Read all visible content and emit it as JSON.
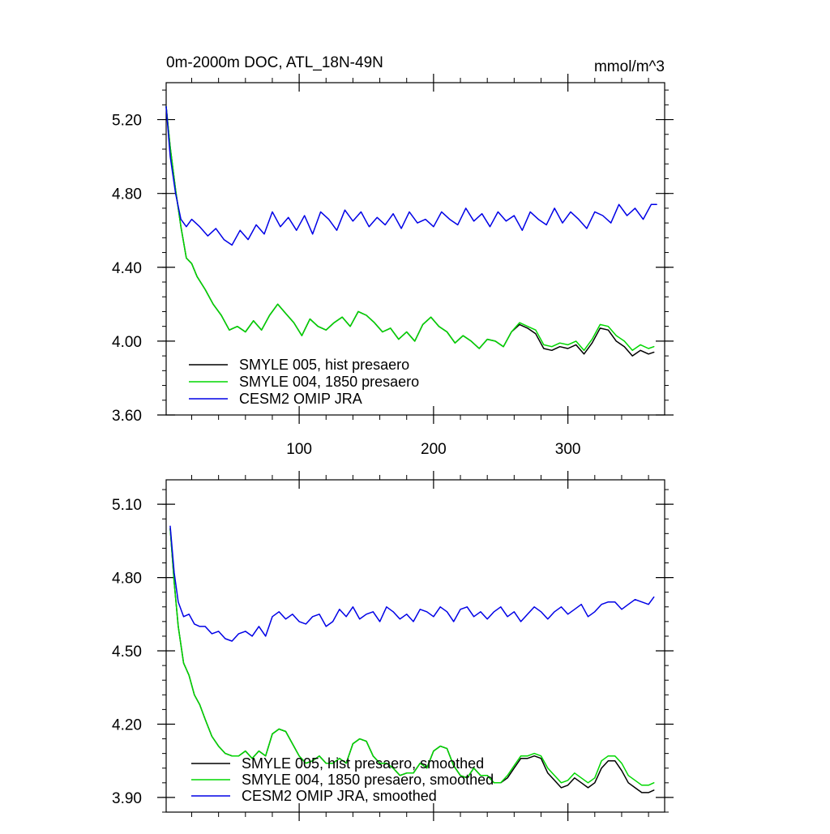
{
  "chart_data": [
    {
      "type": "line",
      "title": "0m-2000m DOC, ATL_18N-49N",
      "units": "mmol/m^3",
      "xlim": [
        1,
        372
      ],
      "ylim": [
        3.6,
        5.4
      ],
      "xticks": [
        100,
        200,
        300
      ],
      "xtick_labels": [
        "100",
        "200",
        "300"
      ],
      "yticks": [
        3.6,
        4.0,
        4.4,
        4.8,
        5.2
      ],
      "ytick_labels": [
        "3.60",
        "4.00",
        "4.40",
        "4.80",
        "5.20"
      ],
      "legend_position": "bottom-left",
      "series": [
        {
          "name": "SMYLE 005, hist presaero",
          "color": "#000000",
          "x": [
            1,
            4,
            8,
            12,
            16,
            20,
            24,
            30,
            36,
            42,
            48,
            54,
            60,
            66,
            72,
            78,
            84,
            90,
            96,
            102,
            108,
            114,
            120,
            126,
            132,
            138,
            144,
            150,
            156,
            162,
            168,
            174,
            180,
            186,
            192,
            198,
            204,
            210,
            216,
            222,
            228,
            234,
            240,
            246,
            252,
            258,
            264,
            270,
            276,
            282,
            288,
            294,
            300,
            306,
            312,
            318,
            324,
            330,
            336,
            342,
            348,
            354,
            360,
            364
          ],
          "values": [
            5.27,
            5.05,
            4.82,
            4.62,
            4.45,
            4.42,
            4.35,
            4.28,
            4.2,
            4.14,
            4.06,
            4.08,
            4.05,
            4.11,
            4.06,
            4.14,
            4.2,
            4.15,
            4.1,
            4.03,
            4.12,
            4.08,
            4.06,
            4.1,
            4.13,
            4.08,
            4.16,
            4.14,
            4.1,
            4.05,
            4.07,
            4.01,
            4.05,
            4.0,
            4.09,
            4.13,
            4.08,
            4.05,
            3.99,
            4.03,
            4.0,
            3.96,
            4.01,
            4.0,
            3.97,
            4.05,
            4.09,
            4.07,
            4.04,
            3.96,
            3.95,
            3.97,
            3.96,
            3.98,
            3.93,
            3.99,
            4.07,
            4.06,
            4.0,
            3.97,
            3.92,
            3.95,
            3.93,
            3.94
          ]
        },
        {
          "name": "SMYLE 004, 1850 presaero",
          "color": "#00d700",
          "x": [
            1,
            4,
            8,
            12,
            16,
            20,
            24,
            30,
            36,
            42,
            48,
            54,
            60,
            66,
            72,
            78,
            84,
            90,
            96,
            102,
            108,
            114,
            120,
            126,
            132,
            138,
            144,
            150,
            156,
            162,
            168,
            174,
            180,
            186,
            192,
            198,
            204,
            210,
            216,
            222,
            228,
            234,
            240,
            246,
            252,
            258,
            264,
            270,
            276,
            282,
            288,
            294,
            300,
            306,
            312,
            318,
            324,
            330,
            336,
            342,
            348,
            354,
            360,
            364
          ],
          "values": [
            5.27,
            5.05,
            4.82,
            4.62,
            4.45,
            4.42,
            4.35,
            4.28,
            4.2,
            4.14,
            4.06,
            4.08,
            4.05,
            4.11,
            4.06,
            4.14,
            4.2,
            4.15,
            4.1,
            4.03,
            4.12,
            4.08,
            4.06,
            4.1,
            4.13,
            4.08,
            4.16,
            4.14,
            4.1,
            4.05,
            4.07,
            4.01,
            4.05,
            4.0,
            4.09,
            4.13,
            4.08,
            4.05,
            3.99,
            4.03,
            4.0,
            3.96,
            4.01,
            4.0,
            3.97,
            4.05,
            4.1,
            4.08,
            4.06,
            3.98,
            3.97,
            3.99,
            3.98,
            4.0,
            3.95,
            4.01,
            4.09,
            4.08,
            4.03,
            4.0,
            3.95,
            3.98,
            3.96,
            3.97
          ]
        },
        {
          "name": "CESM2 OMIP JRA",
          "color": "#0000e6",
          "x": [
            1,
            4,
            8,
            12,
            16,
            20,
            26,
            32,
            38,
            44,
            50,
            56,
            62,
            68,
            74,
            80,
            86,
            92,
            98,
            104,
            110,
            116,
            122,
            128,
            134,
            140,
            146,
            152,
            158,
            164,
            170,
            176,
            182,
            188,
            194,
            200,
            206,
            212,
            218,
            224,
            230,
            236,
            242,
            248,
            254,
            260,
            266,
            272,
            278,
            284,
            290,
            296,
            302,
            308,
            314,
            320,
            326,
            332,
            338,
            344,
            350,
            356,
            362,
            366
          ],
          "values": [
            5.27,
            5.0,
            4.8,
            4.66,
            4.62,
            4.66,
            4.62,
            4.57,
            4.61,
            4.55,
            4.52,
            4.6,
            4.55,
            4.63,
            4.58,
            4.7,
            4.62,
            4.67,
            4.6,
            4.68,
            4.58,
            4.7,
            4.66,
            4.6,
            4.71,
            4.65,
            4.7,
            4.62,
            4.67,
            4.63,
            4.69,
            4.61,
            4.7,
            4.64,
            4.66,
            4.62,
            4.7,
            4.66,
            4.63,
            4.72,
            4.65,
            4.69,
            4.62,
            4.7,
            4.65,
            4.68,
            4.6,
            4.7,
            4.66,
            4.63,
            4.72,
            4.64,
            4.7,
            4.66,
            4.61,
            4.7,
            4.68,
            4.64,
            4.74,
            4.68,
            4.72,
            4.66,
            4.74,
            4.74
          ]
        }
      ]
    },
    {
      "type": "line",
      "title": "",
      "xlim": [
        1,
        372
      ],
      "ylim": [
        3.84,
        5.2
      ],
      "xticks": [
        100,
        200,
        300
      ],
      "xtick_labels": [
        "",
        "",
        ""
      ],
      "yticks": [
        3.9,
        4.2,
        4.5,
        4.8,
        5.1
      ],
      "ytick_labels": [
        "3.90",
        "4.20",
        "4.50",
        "4.80",
        "5.10"
      ],
      "legend_position": "bottom-left",
      "series": [
        {
          "name": "SMYLE 005, hist presaero, smoothed",
          "color": "#000000",
          "x": [
            4,
            7,
            10,
            14,
            18,
            22,
            26,
            30,
            35,
            40,
            45,
            50,
            55,
            60,
            65,
            70,
            75,
            80,
            85,
            90,
            95,
            100,
            105,
            110,
            115,
            120,
            125,
            130,
            135,
            140,
            145,
            150,
            155,
            160,
            165,
            170,
            175,
            180,
            185,
            190,
            195,
            200,
            205,
            210,
            215,
            220,
            225,
            230,
            235,
            240,
            245,
            250,
            255,
            260,
            265,
            270,
            275,
            280,
            285,
            290,
            295,
            300,
            305,
            310,
            315,
            320,
            325,
            330,
            335,
            340,
            345,
            350,
            355,
            360,
            364
          ],
          "values": [
            5.0,
            4.78,
            4.6,
            4.45,
            4.4,
            4.32,
            4.28,
            4.22,
            4.15,
            4.11,
            4.08,
            4.07,
            4.07,
            4.09,
            4.06,
            4.09,
            4.07,
            4.16,
            4.18,
            4.17,
            4.12,
            4.07,
            4.04,
            4.05,
            4.07,
            4.04,
            4.04,
            4.06,
            4.04,
            4.12,
            4.14,
            4.13,
            4.07,
            4.04,
            4.04,
            4.02,
            3.99,
            4.0,
            4.0,
            4.04,
            4.02,
            4.09,
            4.11,
            4.1,
            4.03,
            3.99,
            3.98,
            4.02,
            3.99,
            3.99,
            3.96,
            3.96,
            3.98,
            4.02,
            4.06,
            4.06,
            4.07,
            4.06,
            4.0,
            3.97,
            3.94,
            3.95,
            3.98,
            3.96,
            3.94,
            3.96,
            4.02,
            4.05,
            4.05,
            4.01,
            3.96,
            3.94,
            3.92,
            3.92,
            3.93
          ]
        },
        {
          "name": "SMYLE 004, 1850 presaero, smoothed",
          "color": "#00d700",
          "x": [
            4,
            7,
            10,
            14,
            18,
            22,
            26,
            30,
            35,
            40,
            45,
            50,
            55,
            60,
            65,
            70,
            75,
            80,
            85,
            90,
            95,
            100,
            105,
            110,
            115,
            120,
            125,
            130,
            135,
            140,
            145,
            150,
            155,
            160,
            165,
            170,
            175,
            180,
            185,
            190,
            195,
            200,
            205,
            210,
            215,
            220,
            225,
            230,
            235,
            240,
            245,
            250,
            255,
            260,
            265,
            270,
            275,
            280,
            285,
            290,
            295,
            300,
            305,
            310,
            315,
            320,
            325,
            330,
            335,
            340,
            345,
            350,
            355,
            360,
            364
          ],
          "values": [
            5.0,
            4.78,
            4.6,
            4.45,
            4.4,
            4.32,
            4.28,
            4.22,
            4.15,
            4.11,
            4.08,
            4.07,
            4.07,
            4.09,
            4.06,
            4.09,
            4.07,
            4.16,
            4.18,
            4.17,
            4.12,
            4.07,
            4.04,
            4.05,
            4.07,
            4.04,
            4.04,
            4.06,
            4.04,
            4.12,
            4.14,
            4.13,
            4.07,
            4.04,
            4.04,
            4.02,
            3.99,
            4.0,
            4.0,
            4.04,
            4.02,
            4.09,
            4.11,
            4.1,
            4.03,
            3.99,
            3.98,
            4.02,
            3.99,
            3.99,
            3.96,
            3.96,
            3.99,
            4.03,
            4.07,
            4.07,
            4.08,
            4.07,
            4.02,
            3.99,
            3.96,
            3.97,
            4.0,
            3.98,
            3.96,
            3.98,
            4.05,
            4.07,
            4.07,
            4.04,
            3.99,
            3.97,
            3.95,
            3.95,
            3.96
          ]
        },
        {
          "name": "CESM2 OMIP JRA, smoothed",
          "color": "#0000e6",
          "x": [
            4,
            7,
            10,
            14,
            18,
            22,
            26,
            30,
            35,
            40,
            45,
            50,
            55,
            60,
            65,
            70,
            75,
            80,
            85,
            90,
            95,
            100,
            105,
            110,
            115,
            120,
            125,
            130,
            135,
            140,
            145,
            150,
            155,
            160,
            165,
            170,
            175,
            180,
            185,
            190,
            195,
            200,
            205,
            210,
            215,
            220,
            225,
            230,
            235,
            240,
            245,
            250,
            255,
            260,
            265,
            270,
            275,
            280,
            285,
            290,
            295,
            300,
            305,
            310,
            315,
            320,
            325,
            330,
            335,
            340,
            345,
            350,
            355,
            360,
            364
          ],
          "values": [
            5.01,
            4.82,
            4.7,
            4.64,
            4.65,
            4.61,
            4.6,
            4.6,
            4.57,
            4.58,
            4.55,
            4.54,
            4.57,
            4.58,
            4.56,
            4.6,
            4.56,
            4.64,
            4.66,
            4.63,
            4.65,
            4.62,
            4.61,
            4.64,
            4.65,
            4.6,
            4.62,
            4.67,
            4.64,
            4.68,
            4.63,
            4.65,
            4.66,
            4.62,
            4.68,
            4.66,
            4.63,
            4.65,
            4.62,
            4.67,
            4.66,
            4.64,
            4.68,
            4.66,
            4.62,
            4.67,
            4.68,
            4.64,
            4.66,
            4.63,
            4.66,
            4.68,
            4.64,
            4.66,
            4.62,
            4.65,
            4.68,
            4.66,
            4.63,
            4.66,
            4.68,
            4.65,
            4.67,
            4.69,
            4.64,
            4.66,
            4.69,
            4.7,
            4.7,
            4.67,
            4.69,
            4.71,
            4.7,
            4.69,
            4.72
          ]
        }
      ]
    }
  ]
}
